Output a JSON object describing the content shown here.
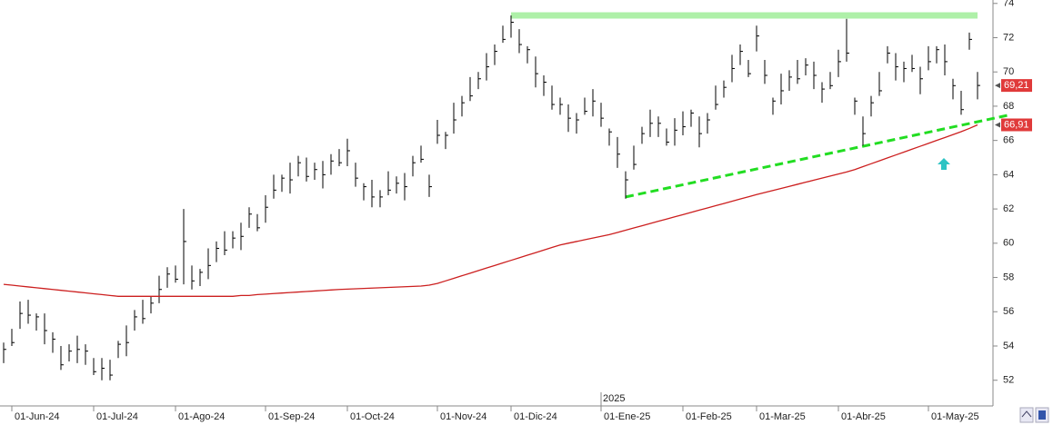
{
  "chart_data": {
    "type": "ohlc",
    "categories": [
      null,
      "01-Jun-24",
      null,
      null,
      null,
      null,
      null,
      null,
      null,
      null,
      null,
      "01-Jul-24",
      null,
      null,
      null,
      null,
      null,
      null,
      null,
      null,
      null,
      "01-Ago-24",
      null,
      null,
      null,
      null,
      null,
      null,
      null,
      null,
      null,
      null,
      "01-Sep-24",
      null,
      null,
      null,
      null,
      null,
      null,
      null,
      null,
      null,
      "01-Oct-24",
      null,
      null,
      null,
      null,
      null,
      null,
      null,
      null,
      null,
      null,
      "01-Nov-24",
      null,
      null,
      null,
      null,
      null,
      null,
      null,
      null,
      "01-Dic-24",
      null,
      null,
      null,
      null,
      null,
      null,
      null,
      null,
      null,
      null,
      "01-Ene-25",
      null,
      null,
      null,
      null,
      null,
      null,
      null,
      null,
      null,
      "01-Feb-25",
      null,
      null,
      null,
      null,
      null,
      null,
      null,
      null,
      "01-Mar-25",
      null,
      null,
      null,
      null,
      null,
      null,
      null,
      null,
      null,
      "01-Abr-25",
      null,
      null,
      null,
      null,
      null,
      null,
      null,
      null,
      null,
      null,
      "01-May-25",
      null,
      null,
      null,
      null,
      null,
      null
    ],
    "year_marker": {
      "index": 73,
      "label": "2025"
    },
    "series": [
      {
        "type": "ohlc",
        "color": "#000000",
        "high": [
          54.2,
          55.0,
          56.6,
          56.7,
          55.9,
          55.9,
          54.8,
          54.0,
          54.1,
          54.6,
          54.1,
          53.3,
          53.3,
          53.2,
          54.3,
          55.2,
          56.1,
          56.7,
          56.9,
          58.1,
          58.6,
          58.7,
          62.0,
          58.7,
          58.5,
          59.7,
          60.1,
          60.7,
          60.7,
          61.2,
          62.1,
          61.7,
          62.8,
          64.0,
          64.0,
          64.7,
          65.1,
          65.0,
          64.7,
          64.8,
          65.2,
          65.5,
          66.1,
          64.7,
          63.5,
          63.7,
          63.1,
          64.2,
          63.9,
          64.1,
          65.1,
          65.7,
          64.0,
          67.2,
          66.5,
          68.2,
          68.6,
          69.7,
          70.0,
          71.1,
          71.6,
          72.7,
          73.3,
          72.5,
          71.5,
          70.9,
          69.8,
          69.2,
          68.5,
          68.1,
          67.6,
          68.5,
          69.0,
          68.2,
          66.7,
          66.2,
          64.2,
          65.7,
          66.8,
          67.8,
          67.4,
          66.7,
          67.3,
          67.7,
          67.8,
          67.4,
          67.6,
          69.2,
          69.5,
          71.0,
          71.6,
          70.7,
          72.7,
          70.7,
          68.5,
          69.9,
          70.1,
          70.7,
          70.8,
          70.6,
          69.4,
          70.0,
          71.3,
          73.1,
          68.5,
          67.4,
          68.6,
          70.0,
          71.5,
          71.1,
          70.6,
          71.0,
          70.3,
          71.5,
          71.5,
          71.6,
          69.6,
          68.9,
          72.3,
          70.0
        ],
        "low": [
          53.0,
          54.0,
          55.0,
          55.3,
          54.9,
          54.1,
          53.6,
          52.6,
          53.1,
          53.0,
          52.9,
          52.3,
          52.0,
          52.0,
          53.3,
          53.4,
          54.9,
          55.3,
          55.9,
          56.5,
          57.4,
          57.7,
          57.6,
          57.3,
          57.5,
          57.9,
          58.9,
          59.3,
          59.7,
          59.6,
          60.9,
          60.7,
          61.2,
          62.6,
          63.0,
          62.9,
          63.9,
          63.6,
          63.7,
          63.2,
          64.0,
          64.5,
          64.5,
          63.3,
          62.5,
          62.1,
          62.1,
          62.8,
          62.9,
          62.5,
          63.9,
          64.7,
          62.7,
          65.8,
          65.5,
          66.4,
          67.4,
          68.3,
          69.0,
          69.5,
          70.4,
          71.7,
          72.0,
          71.1,
          70.5,
          69.1,
          68.6,
          67.8,
          67.5,
          66.5,
          66.4,
          67.5,
          67.4,
          66.8,
          65.7,
          64.4,
          62.6,
          64.3,
          65.8,
          66.2,
          66.2,
          65.7,
          65.7,
          66.3,
          66.8,
          65.6,
          66.4,
          67.8,
          68.5,
          69.4,
          70.4,
          69.7,
          71.2,
          69.3,
          67.5,
          68.1,
          68.9,
          69.3,
          69.8,
          69.0,
          68.2,
          69.0,
          69.7,
          70.6,
          67.5,
          65.7,
          67.4,
          68.6,
          70.5,
          69.5,
          69.4,
          70.0,
          68.7,
          70.1,
          70.5,
          69.8,
          68.4,
          67.5,
          71.3,
          68.4
        ],
        "close": [
          53.8,
          54.2,
          55.9,
          55.8,
          55.7,
          54.9,
          54.4,
          52.9,
          53.7,
          53.8,
          53.7,
          52.5,
          52.7,
          52.3,
          54.1,
          54.2,
          55.7,
          55.6,
          56.5,
          57.3,
          58.2,
          57.9,
          60.1,
          57.8,
          58.3,
          58.7,
          59.7,
          59.6,
          60.3,
          60.4,
          61.7,
          60.9,
          62.1,
          63.1,
          63.8,
          63.7,
          64.7,
          63.9,
          64.3,
          64.0,
          64.8,
          64.7,
          65.4,
          63.8,
          63.3,
          62.7,
          62.7,
          63.1,
          63.5,
          63.3,
          64.7,
          64.9,
          63.3,
          66.3,
          66.3,
          67.2,
          68.2,
          68.6,
          69.6,
          70.3,
          71.2,
          71.9,
          72.9,
          71.6,
          71.3,
          69.9,
          69.4,
          68.1,
          68.1,
          67.3,
          67.2,
          67.7,
          68.3,
          67.3,
          66.5,
          65.2,
          63.7,
          64.6,
          66.4,
          67.0,
          67.0,
          65.9,
          66.6,
          66.8,
          67.6,
          66.4,
          67.2,
          68.1,
          69.1,
          70.2,
          71.2,
          69.9,
          72.1,
          69.8,
          68.3,
          68.9,
          69.7,
          69.6,
          70.4,
          69.8,
          69.0,
          69.2,
          70.6,
          71.1,
          68.3,
          66.4,
          68.2,
          68.9,
          71.1,
          70.3,
          70.2,
          70.2,
          69.6,
          70.6,
          71.3,
          70.6,
          69.2,
          67.8,
          71.9,
          69.21
        ]
      },
      {
        "type": "line",
        "color": "#cc1f1f",
        "values": [
          57.6,
          57.55,
          57.5,
          57.45,
          57.4,
          57.35,
          57.3,
          57.25,
          57.2,
          57.15,
          57.1,
          57.05,
          57.0,
          56.95,
          56.9,
          56.9,
          56.9,
          56.9,
          56.9,
          56.9,
          56.9,
          56.9,
          56.9,
          56.9,
          56.9,
          56.9,
          56.9,
          56.9,
          56.9,
          56.95,
          56.95,
          57.0,
          57.03,
          57.06,
          57.09,
          57.12,
          57.15,
          57.18,
          57.21,
          57.24,
          57.27,
          57.3,
          57.32,
          57.34,
          57.36,
          57.38,
          57.4,
          57.42,
          57.44,
          57.46,
          57.48,
          57.5,
          57.55,
          57.65,
          57.8,
          57.95,
          58.1,
          58.25,
          58.4,
          58.55,
          58.7,
          58.85,
          59.0,
          59.15,
          59.3,
          59.45,
          59.6,
          59.75,
          59.9,
          60.0,
          60.1,
          60.2,
          60.3,
          60.4,
          60.5,
          60.63,
          60.76,
          60.89,
          61.02,
          61.15,
          61.28,
          61.41,
          61.54,
          61.67,
          61.8,
          61.93,
          62.06,
          62.19,
          62.32,
          62.45,
          62.58,
          62.71,
          62.84,
          62.96,
          63.08,
          63.2,
          63.32,
          63.44,
          63.56,
          63.68,
          63.8,
          63.92,
          64.04,
          64.16,
          64.3,
          64.47,
          64.64,
          64.81,
          64.98,
          65.15,
          65.32,
          65.49,
          65.66,
          65.83,
          66.0,
          66.17,
          66.34,
          66.51,
          66.7,
          66.91
        ]
      }
    ],
    "trendlines": [
      {
        "color": "#aef0a8",
        "style": "solid",
        "start": {
          "index": 62,
          "value": 73.3
        },
        "end": {
          "index": 119,
          "value": 73.3
        }
      },
      {
        "color": "#22dd22",
        "style": "dashed",
        "start": {
          "index": 76,
          "value": 62.7
        },
        "end": {
          "index": 123,
          "value": 67.5
        }
      }
    ],
    "axis_labels": [
      {
        "value": 69.21,
        "label": "69,21",
        "color": "#e03a3a"
      },
      {
        "value": 66.91,
        "label": "66,91",
        "color": "#e03a3a"
      }
    ],
    "ylim": [
      50.5,
      74.2
    ],
    "yticks": [
      52,
      54,
      56,
      58,
      60,
      62,
      64,
      66,
      68,
      70,
      72,
      74
    ]
  }
}
